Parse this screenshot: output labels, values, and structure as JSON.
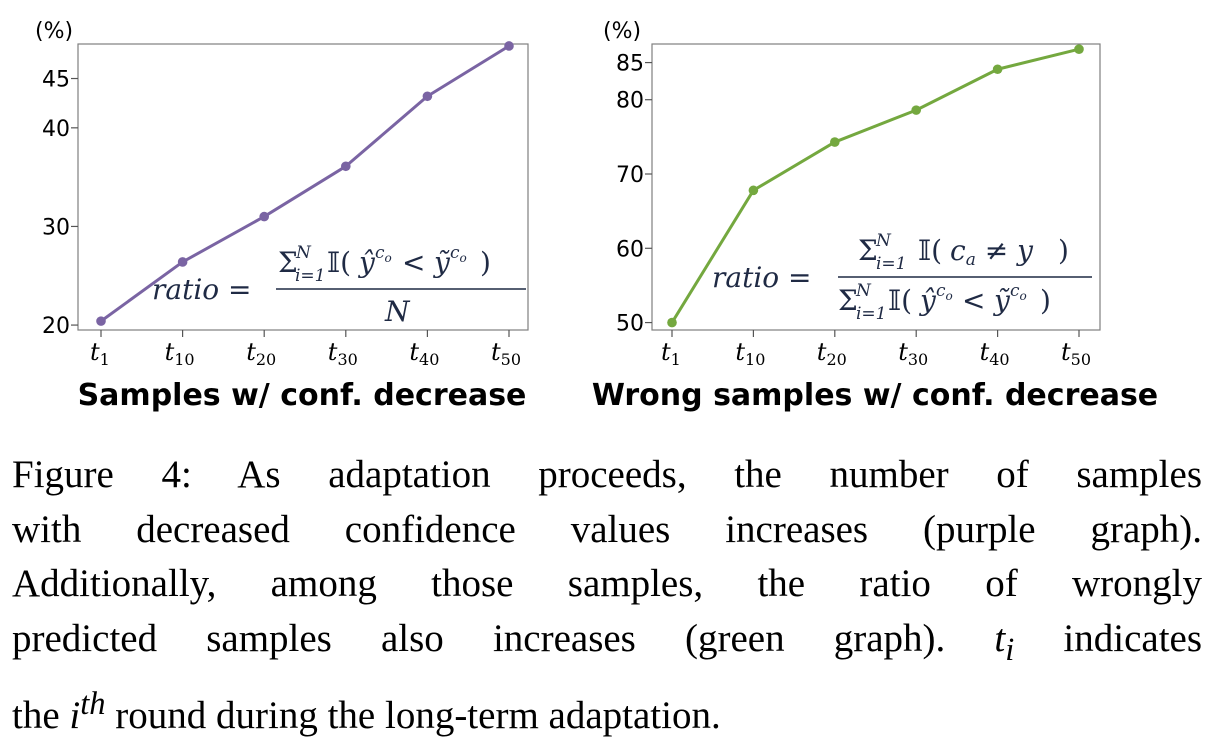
{
  "chart_data": [
    {
      "type": "line",
      "unit_label": "(%)",
      "categories": [
        "t1",
        "t10",
        "t20",
        "t30",
        "t40",
        "t50"
      ],
      "tick_base": "t",
      "tick_subscripts": [
        "1",
        "10",
        "20",
        "30",
        "40",
        "50"
      ],
      "yticks": [
        20,
        30,
        40,
        45
      ],
      "ylim": [
        19.5,
        48.5
      ],
      "series": [
        {
          "color": "#7a64a3",
          "values": [
            20.4,
            26.4,
            31.0,
            36.1,
            43.2,
            48.3
          ]
        }
      ],
      "xlabel": "Samples w/ conf. decrease",
      "formula": {
        "lhs": "ratio =",
        "numerator": "Σ i=1 N 𝕀(ŷ^co < ỹ^co)",
        "denominator": "N"
      },
      "grid": false
    },
    {
      "type": "line",
      "unit_label": "(%)",
      "categories": [
        "t1",
        "t10",
        "t20",
        "t30",
        "t40",
        "t50"
      ],
      "tick_base": "t",
      "tick_subscripts": [
        "1",
        "10",
        "20",
        "30",
        "40",
        "50"
      ],
      "yticks": [
        50,
        60,
        70,
        80,
        85
      ],
      "ylim": [
        49,
        87.5
      ],
      "series": [
        {
          "color": "#74a83f",
          "values": [
            50.0,
            67.8,
            74.3,
            78.6,
            84.1,
            86.8
          ]
        }
      ],
      "xlabel": "Wrong samples w/ conf. decrease",
      "formula": {
        "lhs": "ratio =",
        "numerator": "Σ i=1 N 𝕀(c_a ≠ y)",
        "denominator": "Σ i=1 N 𝕀(ŷ^co < ỹ^co)"
      },
      "grid": false
    }
  ],
  "caption": {
    "lines": [
      "Figure 4:  As adaptation proceeds, the number of samples",
      "with decreased confidence values increases (purple graph).",
      "Additionally, among those samples, the ratio of wrongly",
      "predicted samples also increases (green graph). t_i indicates",
      "the i^th round during the long-term adaptation."
    ],
    "line1": "Figure 4:  As adaptation proceeds, the number of samples",
    "line2": "with decreased confidence values increases (purple graph).",
    "line3": "Additionally, among those samples, the ratio of wrongly",
    "line4_pre": "predicted samples also increases (green graph).",
    "line4_var": "t",
    "line4_sub": "i",
    "line4_post": "indicates",
    "line5_pre": "the",
    "line5_var": "i",
    "line5_sup": "th",
    "line5_post": "round during the long-term adaptation."
  }
}
